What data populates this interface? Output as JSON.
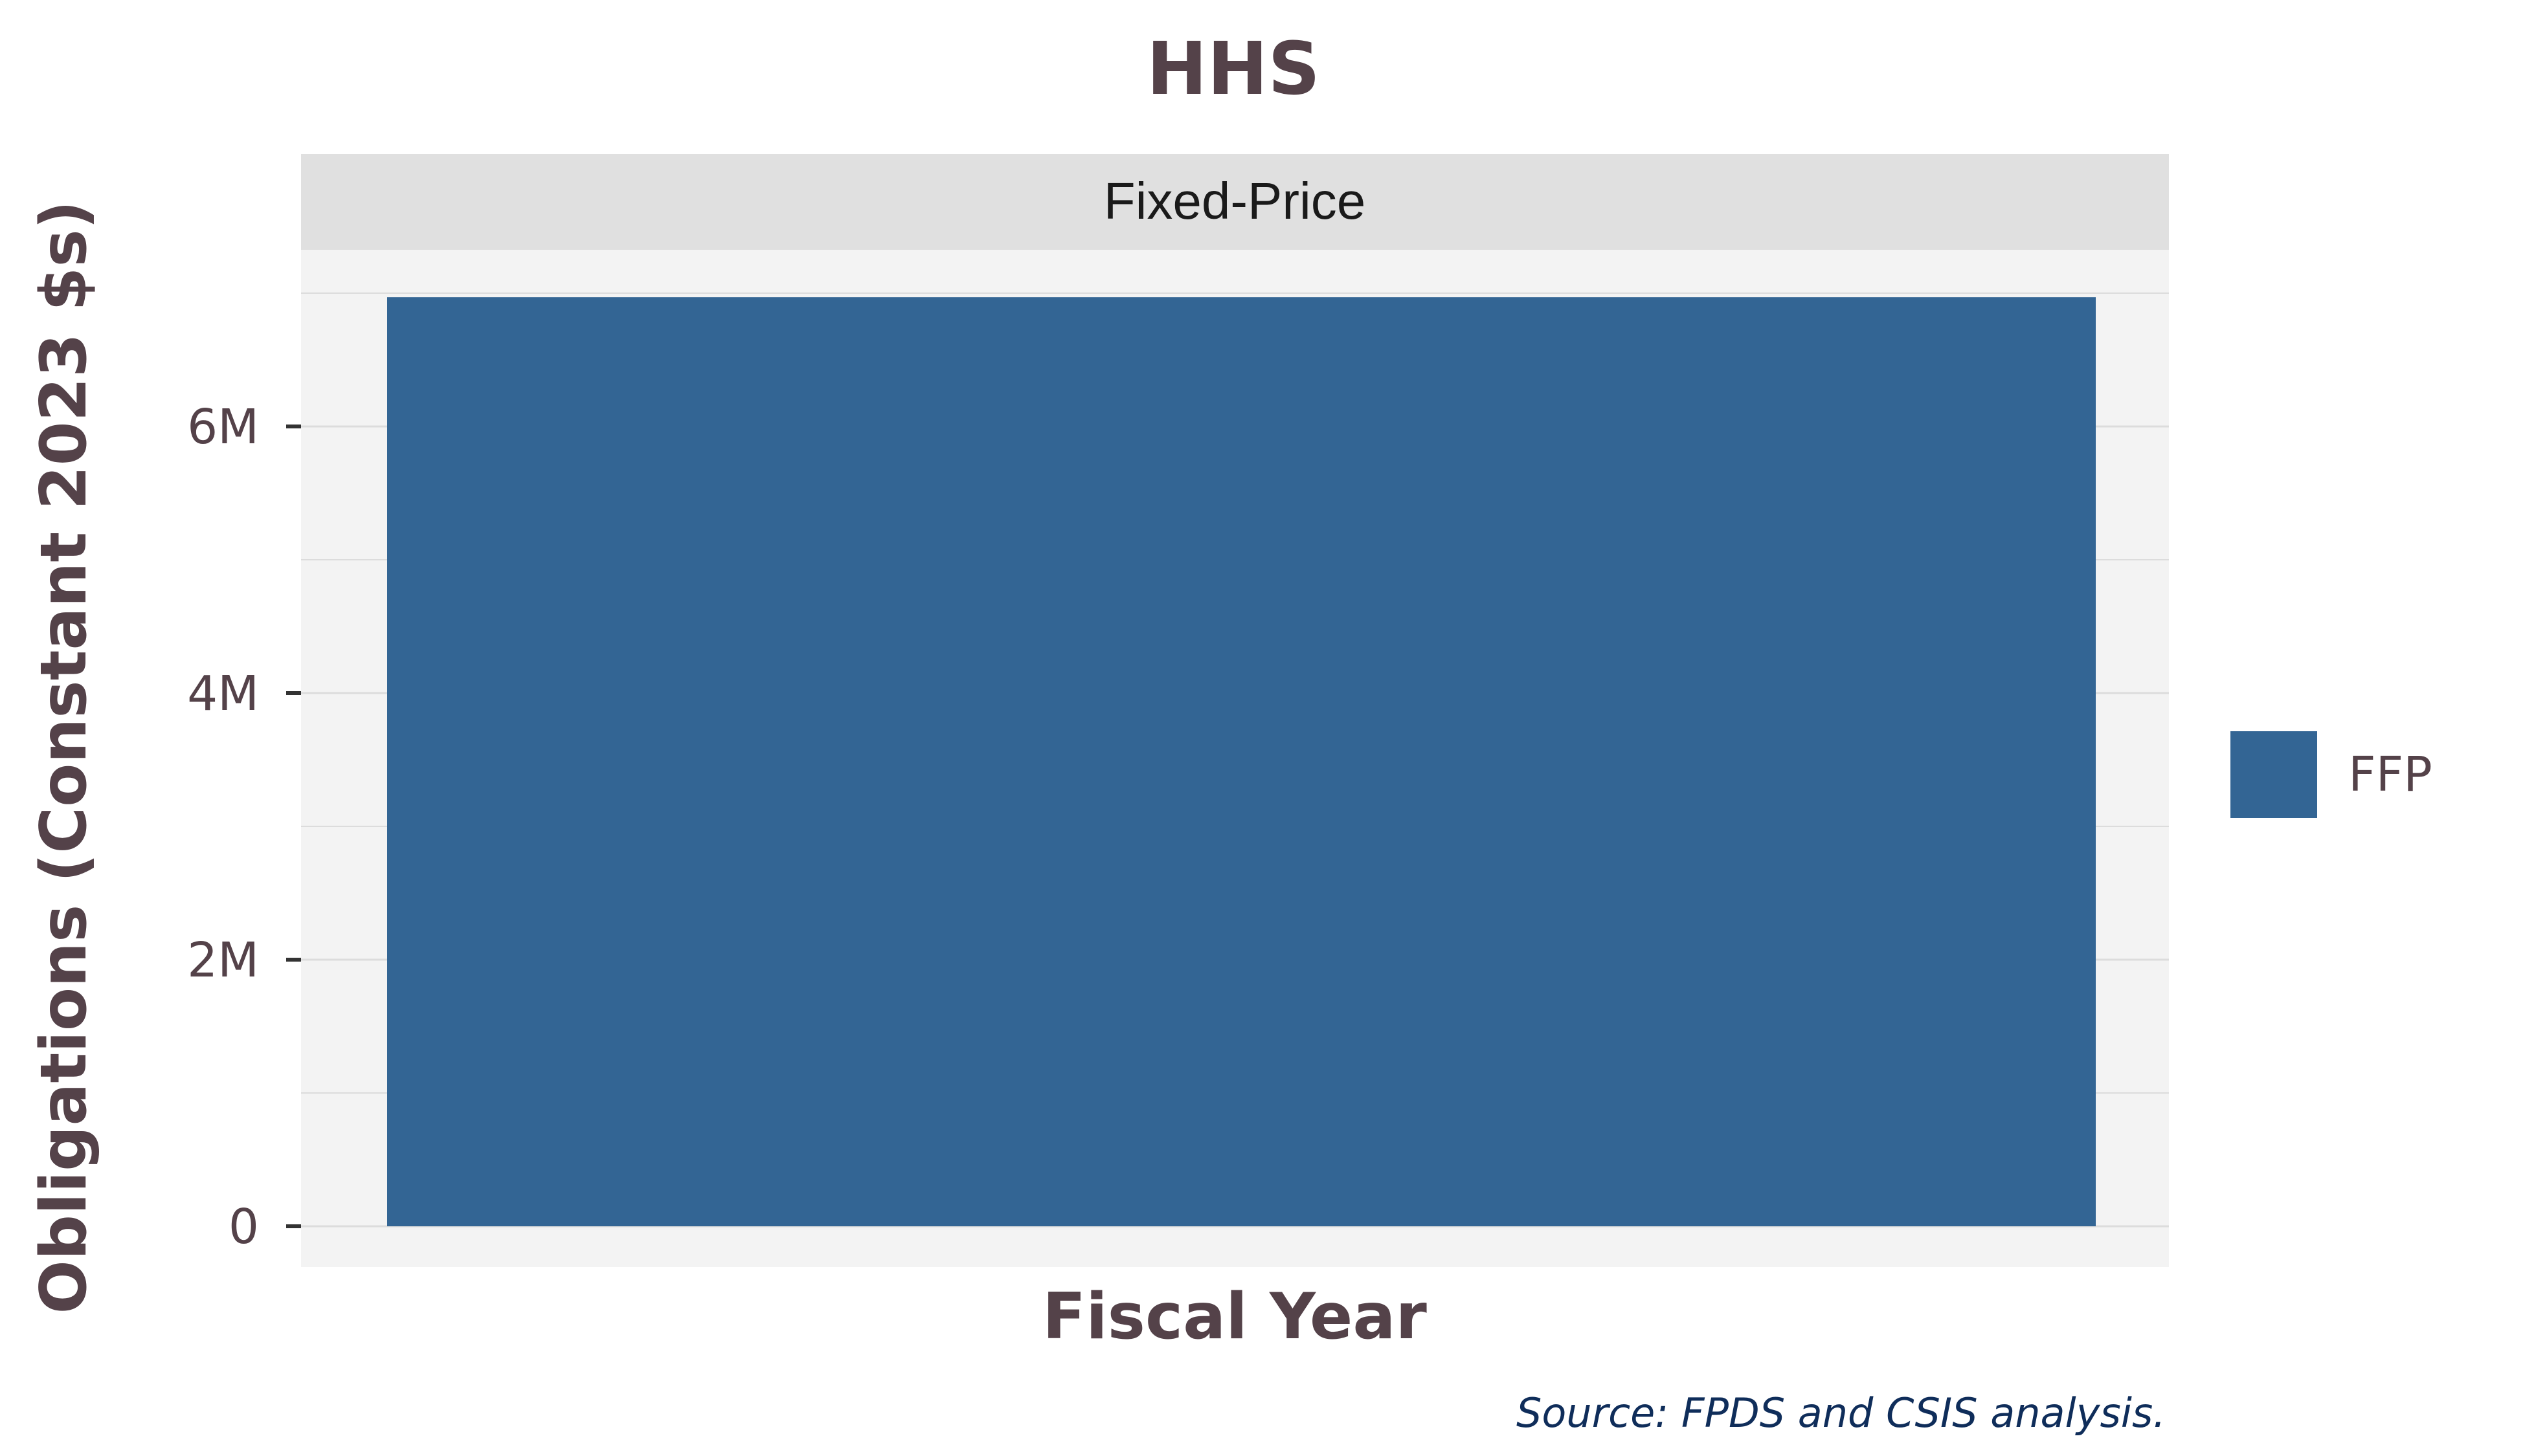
{
  "chart_data": {
    "type": "bar",
    "title": "HHS",
    "facet_label": "Fixed-Price",
    "xlabel": "Fiscal Year",
    "ylabel": "Obligations (Constant 2023 $s)",
    "categories": [
      ""
    ],
    "series": [
      {
        "name": "FFP",
        "values": [
          6970000
        ],
        "color": "#336594"
      }
    ],
    "ylim": [
      0,
      7340000
    ],
    "yticks": [
      0,
      2000000,
      4000000,
      6000000
    ],
    "ytick_labels": [
      "0",
      "2M",
      "4M",
      "6M"
    ],
    "grid": true,
    "legend_position": "right",
    "source": "Source: FPDS and CSIS analysis."
  },
  "colors": {
    "panel_background": "#f3f3f3",
    "strip_background": "#e0e0e0",
    "gridline": "#dcdcdc",
    "text": "#544249",
    "source_text": "#0f2d5a"
  }
}
